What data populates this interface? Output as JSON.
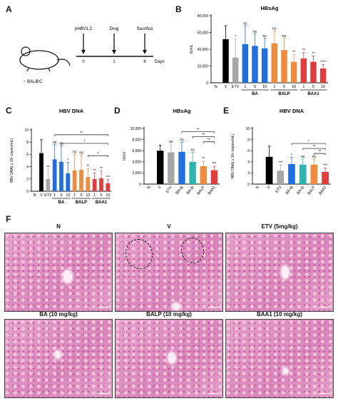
{
  "panel_letters": {
    "a": "A",
    "b": "B",
    "c": "C",
    "d": "D",
    "e": "E",
    "f": "F"
  },
  "panel_a": {
    "timeline_labels": [
      "pHBV1.2",
      "Drug",
      "Sacrifice"
    ],
    "day_ticks": [
      "0",
      "1",
      "8"
    ],
    "axis_unit": "Days",
    "mouse_label": "♂ BALB/C"
  },
  "chart_data": [
    {
      "id": "B",
      "type": "bar",
      "title": "HBsAg",
      "ylabel": "IU/mL",
      "ylim": [
        0,
        80000
      ],
      "yticks": [
        "0",
        "20,000",
        "40,000",
        "60,000",
        "80,000"
      ],
      "categories": [
        "N",
        "V",
        "ETV",
        "1",
        "5",
        "10",
        "1",
        "5",
        "10",
        "1",
        "5",
        "10"
      ],
      "values": [
        0,
        52000,
        30000,
        46000,
        44000,
        41000,
        47000,
        39000,
        25000,
        29000,
        25000,
        17000
      ],
      "errors": [
        0,
        16000,
        22000,
        22000,
        14000,
        12000,
        15000,
        14000,
        9000,
        7000,
        7000,
        5000
      ],
      "colors": [
        "#000000",
        "#000000",
        "#a6a6a6",
        "#1f6fe0",
        "#1f6fe0",
        "#1f6fe0",
        "#f08a3c",
        "#f08a3c",
        "#f08a3c",
        "#e23c3c",
        "#e23c3c",
        "#e23c3c"
      ],
      "sig": [
        "",
        "",
        "*",
        "ns",
        "ns",
        "ns",
        "ns",
        "ns",
        "**",
        "**",
        "**",
        "****"
      ],
      "groups": [
        {
          "label": "BA",
          "from": 3,
          "to": 5
        },
        {
          "label": "BALP",
          "from": 6,
          "to": 8
        },
        {
          "label": "BAA1",
          "from": 9,
          "to": 11
        }
      ],
      "brackets": []
    },
    {
      "id": "C",
      "type": "bar",
      "title": "HBV DNA",
      "ylabel": "HBV DNA( x 10⁸ copies/mL)",
      "ylim": [
        0,
        10
      ],
      "yticks": [
        "0",
        "2",
        "4",
        "6",
        "8",
        "10"
      ],
      "categories": [
        "N",
        "V",
        "ETV",
        "1",
        "5",
        "10",
        "1",
        "5",
        "10",
        "1",
        "5",
        "10"
      ],
      "values": [
        0,
        6.2,
        2.0,
        5.2,
        4.8,
        2.9,
        3.4,
        3.5,
        2.3,
        2.0,
        2.1,
        1.3
      ],
      "errors": [
        0,
        2.2,
        1.5,
        2.4,
        2.6,
        1.8,
        2.6,
        2.4,
        1.4,
        1.0,
        1.2,
        0.6
      ],
      "colors": [
        "#000000",
        "#000000",
        "#a6a6a6",
        "#1f6fe0",
        "#1f6fe0",
        "#1f6fe0",
        "#f08a3c",
        "#f08a3c",
        "#f08a3c",
        "#e23c3c",
        "#e23c3c",
        "#e23c3c"
      ],
      "sig": [
        "",
        "",
        "**",
        "ns",
        "ns",
        "*",
        "ns",
        "ns",
        "**",
        "**",
        "**",
        "***"
      ],
      "groups": [
        {
          "label": "BA",
          "from": 3,
          "to": 5
        },
        {
          "label": "BALP",
          "from": 6,
          "to": 8
        },
        {
          "label": "BAA1",
          "from": 9,
          "to": 11
        }
      ],
      "brackets": [
        {
          "from": 3,
          "to": 11,
          "y": 9.2,
          "label": "**"
        },
        {
          "from": 4,
          "to": 11,
          "y": 7.8,
          "label": "*"
        },
        {
          "from": 8,
          "to": 11,
          "y": 5.8,
          "label": "*"
        }
      ]
    },
    {
      "id": "D",
      "type": "bar",
      "title": "HBsAg",
      "ylabel": "IU/ml",
      "ylim": [
        0,
        10000
      ],
      "yticks": [
        "0",
        "2,000",
        "4,000",
        "6,000",
        "8,000",
        "10,000"
      ],
      "categories": [
        "N",
        "V",
        "ETV",
        "BA-ig",
        "BA-ip",
        "BALP",
        "BAA1"
      ],
      "values": [
        0,
        6000,
        5700,
        5800,
        4000,
        3200,
        2500
      ],
      "errors": [
        0,
        1000,
        1500,
        1700,
        1700,
        900,
        700
      ],
      "colors": [
        "#000000",
        "#000000",
        "#a6a6a6",
        "#1f6fe0",
        "#2bb5b0",
        "#f08a3c",
        "#e23c3c"
      ],
      "sig": [
        "",
        "",
        "ns",
        "ns",
        "ns",
        "**",
        "***"
      ],
      "groups": [],
      "brackets": [
        {
          "from": 3,
          "to": 6,
          "y": 9400,
          "label": "**"
        },
        {
          "from": 4,
          "to": 6,
          "y": 8500,
          "label": "**"
        },
        {
          "from": 5,
          "to": 6,
          "y": 7600,
          "label": "**"
        }
      ]
    },
    {
      "id": "E",
      "type": "bar",
      "title": "HBV DNA",
      "ylabel": "HBV DNA( x 10⁹ copies/mL)",
      "ylim": [
        0,
        10
      ],
      "yticks": [
        "0",
        "2",
        "4",
        "6",
        "8",
        "10"
      ],
      "categories": [
        "N",
        "V",
        "ETV",
        "BA-ig",
        "BA-ip",
        "BALP",
        "BAA1"
      ],
      "values": [
        0,
        4.9,
        2.4,
        3.6,
        3.5,
        3.5,
        2.2
      ],
      "errors": [
        0,
        1.9,
        1.0,
        1.2,
        1.0,
        1.0,
        0.7
      ],
      "colors": [
        "#000000",
        "#000000",
        "#a6a6a6",
        "#1f6fe0",
        "#2bb5b0",
        "#f08a3c",
        "#e23c3c"
      ],
      "sig": [
        "",
        "",
        "***",
        "*",
        "ns",
        "ns",
        "***"
      ],
      "groups": [],
      "brackets": [
        {
          "from": 3,
          "to": 6,
          "y": 7.3,
          "label": "*"
        },
        {
          "from": 4,
          "to": 6,
          "y": 6.4,
          "label": "**"
        },
        {
          "from": 5,
          "to": 6,
          "y": 5.5,
          "label": "**"
        }
      ]
    }
  ],
  "panel_f": {
    "images": [
      {
        "title": "N"
      },
      {
        "title": "V"
      },
      {
        "title": "ETV (5mg/kg)"
      },
      {
        "title": "BA (10 mg/kg)"
      },
      {
        "title": "BALP (10 mg/kg)"
      },
      {
        "title": "BAA1 (10 mg/kg)"
      }
    ]
  }
}
